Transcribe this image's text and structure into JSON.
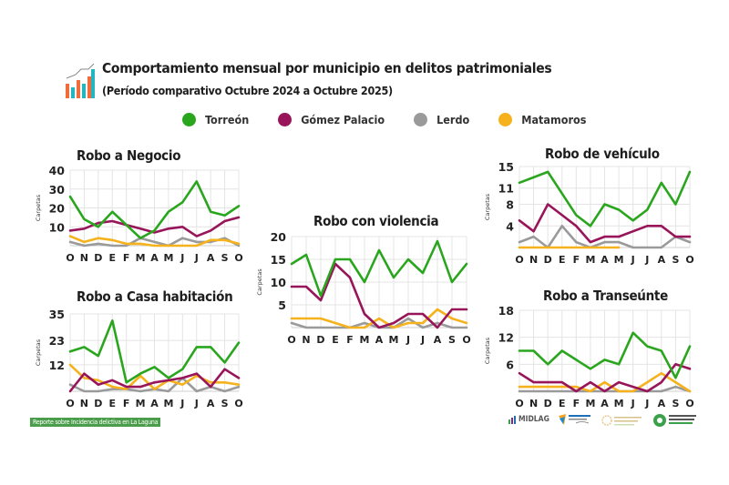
{
  "header": {
    "title": "Comportamiento mensual por municipio en delitos patrimoniales",
    "subtitle": "(Período comparativo Octubre 2024 a Octubre 2025)",
    "icon": "bar-chart-growth-icon"
  },
  "legend": [
    {
      "label": "Torreón",
      "color": "#2aa61e"
    },
    {
      "label": "Gómez Palacio",
      "color": "#98155a"
    },
    {
      "label": "Lerdo",
      "color": "#9a9a9a"
    },
    {
      "label": "Matamoros",
      "color": "#f5b21c"
    }
  ],
  "footer": {
    "report_label": "Reporte sobre Incidencia delictiva en La Laguna",
    "logos": [
      {
        "name": "midlag-logo",
        "text": "MIDLAG"
      },
      {
        "name": "consejo-civico-logo"
      },
      {
        "name": "red-nacional-logo"
      },
      {
        "name": "observatorio-nacional-logo"
      }
    ]
  },
  "chart_data": [
    {
      "id": "negocio",
      "type": "line",
      "title": "Robo a Negocio",
      "ylabel": "Carpetas",
      "xlabel": "",
      "categories": [
        "O",
        "N",
        "D",
        "E",
        "F",
        "M",
        "A",
        "M",
        "J",
        "J",
        "A",
        "S",
        "O"
      ],
      "ylim": [
        0,
        40
      ],
      "yticks": [
        10,
        20,
        30,
        40
      ],
      "grid": true,
      "series": [
        {
          "name": "Torreón",
          "values": [
            26,
            14,
            10,
            18,
            11,
            4,
            8,
            18,
            23,
            34,
            18,
            16,
            21
          ]
        },
        {
          "name": "Gómez Palacio",
          "values": [
            8,
            9,
            12,
            13,
            11,
            9,
            7,
            9,
            10,
            5,
            8,
            13,
            15
          ]
        },
        {
          "name": "Lerdo",
          "values": [
            2,
            0,
            1,
            0,
            0,
            4,
            2,
            0,
            4,
            2,
            2,
            4,
            0
          ]
        },
        {
          "name": "Matamoros",
          "values": [
            5,
            2,
            4,
            3,
            1,
            1,
            0,
            0,
            0,
            0,
            3,
            3,
            1
          ]
        }
      ]
    },
    {
      "id": "casa",
      "type": "line",
      "title": "Robo a Casa habitación",
      "ylabel": "Carpetas",
      "xlabel": "",
      "categories": [
        "O",
        "N",
        "D",
        "E",
        "F",
        "M",
        "A",
        "M",
        "J",
        "J",
        "A",
        "S",
        "O"
      ],
      "ylim": [
        0,
        35
      ],
      "yticks": [
        12,
        23,
        35
      ],
      "grid": true,
      "series": [
        {
          "name": "Torreón",
          "values": [
            18,
            20,
            16,
            32,
            4,
            8,
            11,
            6,
            10,
            20,
            20,
            13,
            22
          ]
        },
        {
          "name": "Gómez Palacio",
          "values": [
            0,
            8,
            3,
            5,
            2,
            2,
            4,
            5,
            6,
            8,
            2,
            10,
            6
          ]
        },
        {
          "name": "Lerdo",
          "values": [
            3,
            0,
            0,
            1,
            1,
            0,
            1,
            0,
            6,
            0,
            2,
            0,
            2
          ]
        },
        {
          "name": "Matamoros",
          "values": [
            12,
            6,
            5,
            2,
            1,
            7,
            1,
            5,
            3,
            7,
            4,
            4,
            3
          ]
        }
      ]
    },
    {
      "id": "violencia",
      "type": "line",
      "title": "Robo con violencia",
      "ylabel": "Carpetas",
      "xlabel": "",
      "categories": [
        "O",
        "N",
        "D",
        "E",
        "F",
        "M",
        "A",
        "M",
        "J",
        "J",
        "A",
        "S",
        "O"
      ],
      "ylim": [
        0,
        20
      ],
      "yticks": [
        5,
        10,
        15,
        20
      ],
      "grid": true,
      "series": [
        {
          "name": "Torreón",
          "values": [
            14,
            16,
            7,
            15,
            15,
            10,
            17,
            11,
            15,
            12,
            19,
            10,
            14
          ]
        },
        {
          "name": "Gómez Palacio",
          "values": [
            9,
            9,
            6,
            14,
            11,
            3,
            0,
            1,
            3,
            3,
            0,
            4,
            4
          ]
        },
        {
          "name": "Lerdo",
          "values": [
            1,
            0,
            0,
            0,
            0,
            1,
            0,
            0,
            2,
            0,
            1,
            0,
            0
          ]
        },
        {
          "name": "Matamoros",
          "values": [
            2,
            2,
            2,
            1,
            0,
            0,
            2,
            0,
            1,
            1,
            4,
            2,
            1
          ]
        }
      ]
    },
    {
      "id": "vehiculo",
      "type": "line",
      "title": "Robo de vehículo",
      "ylabel": "Carpetas",
      "xlabel": "",
      "categories": [
        "O",
        "N",
        "D",
        "E",
        "F",
        "M",
        "A",
        "M",
        "J",
        "J",
        "A",
        "S",
        "O"
      ],
      "ylim": [
        0,
        15
      ],
      "yticks": [
        4,
        8,
        11,
        15
      ],
      "grid": true,
      "series": [
        {
          "name": "Torreón",
          "values": [
            12,
            13,
            14,
            10,
            6,
            4,
            8,
            7,
            5,
            7,
            12,
            8,
            14
          ]
        },
        {
          "name": "Gómez Palacio",
          "values": [
            5,
            3,
            8,
            6,
            4,
            1,
            2,
            2,
            3,
            4,
            4,
            2,
            2
          ]
        },
        {
          "name": "Lerdo",
          "values": [
            1,
            2,
            0,
            4,
            1,
            0,
            1,
            1,
            0,
            0,
            0,
            2,
            1
          ]
        },
        {
          "name": "Matamoros",
          "values": [
            0,
            0,
            0,
            0,
            0,
            0,
            0,
            0,
            null,
            null,
            null,
            null,
            null
          ]
        }
      ]
    },
    {
      "id": "transeunte",
      "type": "line",
      "title": "Robo a Transeúnte",
      "ylabel": "Carpetas",
      "xlabel": "",
      "categories": [
        "O",
        "N",
        "D",
        "E",
        "F",
        "M",
        "A",
        "M",
        "J",
        "J",
        "A",
        "S",
        "O"
      ],
      "ylim": [
        0,
        18
      ],
      "yticks": [
        6,
        12,
        18
      ],
      "grid": true,
      "series": [
        {
          "name": "Torreón",
          "values": [
            9,
            9,
            6,
            9,
            7,
            5,
            7,
            6,
            13,
            10,
            9,
            3,
            10
          ]
        },
        {
          "name": "Gómez Palacio",
          "values": [
            4,
            2,
            2,
            2,
            0,
            2,
            0,
            2,
            1,
            0,
            2,
            6,
            5
          ]
        },
        {
          "name": "Lerdo",
          "values": [
            0,
            0,
            0,
            0,
            0,
            0,
            0,
            0,
            0,
            0,
            0,
            1,
            0
          ]
        },
        {
          "name": "Matamoros",
          "values": [
            1,
            1,
            1,
            1,
            1,
            0,
            2,
            0,
            0,
            2,
            4,
            2,
            0
          ]
        }
      ]
    }
  ]
}
